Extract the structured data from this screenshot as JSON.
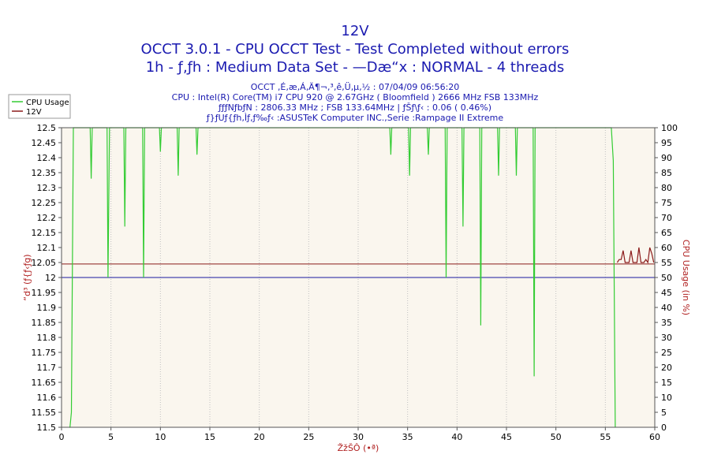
{
  "chart_data": {
    "type": "line",
    "title_lines": [
      "12V",
      "OCCT 3.0.1 - CPU OCCT Test - Test Completed without errors",
      "1h - ƒ‚ƒh : Medium Data Set - —Dæ“x : NORMAL - 4 threads"
    ],
    "info_lines": [
      "OCCT ‚É‚æ‚Á‚Ä¶¬‚³‚ê‚Ü‚µ‚½ : 07/04/09 06:56:20",
      "CPU : Intel(R) Core(TM) i7 CPU 920 @ 2.67GHz ( Bloomfield ) 2666 MHz FSB 133MHz",
      "ƒƒƒNƒbƒN : 2806.33 MHz ; FSB 133.64MHz | ƒŠƒ\\ƒ‹ : 0.06 ( 0.46%)",
      "ƒ}ƒUƒ{ƒh‚Ìƒ‚ƒ‰ƒ‹ :ASUSTeK Computer INC.,Serie :Rampage II Extreme"
    ],
    "xlabel": "ŽžŠÔ (•ª)",
    "ylabel_left": "“d³ (ƒ{ƒ‹ƒg)",
    "ylabel_right": "CPU Usage (in %)",
    "xlim": [
      0,
      60
    ],
    "ylim_left": [
      11.5,
      12.5
    ],
    "ylim_right": [
      0,
      100
    ],
    "x_ticks": [
      0,
      5,
      10,
      15,
      20,
      25,
      30,
      35,
      40,
      45,
      50,
      55,
      60
    ],
    "y_ticks_left": [
      "11.5",
      "11.55",
      "11.6",
      "11.65",
      "11.7",
      "11.75",
      "11.8",
      "11.85",
      "11.9",
      "11.95",
      "12",
      "12.05",
      "12.1",
      "12.15",
      "12.2",
      "12.25",
      "12.3",
      "12.35",
      "12.4",
      "12.45",
      "12.5"
    ],
    "y_ticks_right": [
      0,
      5,
      10,
      15,
      20,
      25,
      30,
      35,
      40,
      45,
      50,
      55,
      60,
      65,
      70,
      75,
      80,
      85,
      90,
      95,
      100
    ],
    "grid": "vertical",
    "legend_position": "top-left",
    "series": [
      {
        "name": "CPU Usage",
        "color": "#33cc33",
        "axis": "right",
        "points": [
          [
            0.8,
            0
          ],
          [
            0.85,
            0
          ],
          [
            1.0,
            5
          ],
          [
            1.2,
            100
          ],
          [
            2.9,
            100
          ],
          [
            3.0,
            83
          ],
          [
            3.1,
            100
          ],
          [
            4.6,
            100
          ],
          [
            4.7,
            50
          ],
          [
            4.85,
            100
          ],
          [
            6.3,
            100
          ],
          [
            6.4,
            67
          ],
          [
            6.5,
            100
          ],
          [
            8.2,
            100
          ],
          [
            8.3,
            50
          ],
          [
            8.4,
            100
          ],
          [
            9.9,
            100
          ],
          [
            10.0,
            92
          ],
          [
            10.1,
            100
          ],
          [
            11.7,
            100
          ],
          [
            11.8,
            84
          ],
          [
            11.9,
            100
          ],
          [
            13.6,
            100
          ],
          [
            13.7,
            91
          ],
          [
            13.8,
            100
          ],
          [
            33.2,
            100
          ],
          [
            33.3,
            91
          ],
          [
            33.4,
            100
          ],
          [
            35.1,
            100
          ],
          [
            35.2,
            84
          ],
          [
            35.3,
            100
          ],
          [
            37.0,
            100
          ],
          [
            37.1,
            91
          ],
          [
            37.2,
            100
          ],
          [
            38.8,
            100
          ],
          [
            38.9,
            50
          ],
          [
            39.0,
            100
          ],
          [
            40.5,
            100
          ],
          [
            40.6,
            67
          ],
          [
            40.7,
            100
          ],
          [
            42.3,
            100
          ],
          [
            42.4,
            34
          ],
          [
            42.5,
            100
          ],
          [
            44.1,
            100
          ],
          [
            44.2,
            84
          ],
          [
            44.3,
            100
          ],
          [
            45.9,
            100
          ],
          [
            46.0,
            84
          ],
          [
            46.1,
            100
          ],
          [
            47.7,
            100
          ],
          [
            47.8,
            17
          ],
          [
            47.9,
            100
          ],
          [
            55.6,
            100
          ],
          [
            55.8,
            89
          ],
          [
            56.0,
            0
          ]
        ]
      },
      {
        "name": "12V",
        "color": "#8b1a1a",
        "axis": "left",
        "points": [
          [
            56.2,
            12.05
          ],
          [
            56.4,
            12.06
          ],
          [
            56.6,
            12.06
          ],
          [
            56.8,
            12.09
          ],
          [
            57.0,
            12.05
          ],
          [
            57.4,
            12.05
          ],
          [
            57.6,
            12.09
          ],
          [
            57.8,
            12.05
          ],
          [
            58.2,
            12.05
          ],
          [
            58.4,
            12.1
          ],
          [
            58.6,
            12.05
          ],
          [
            58.9,
            12.05
          ],
          [
            59.1,
            12.06
          ],
          [
            59.3,
            12.05
          ],
          [
            59.5,
            12.1
          ],
          [
            59.7,
            12.08
          ],
          [
            59.9,
            12.05
          ]
        ]
      }
    ],
    "reference_lines": [
      {
        "axis": "left",
        "value": 12.0,
        "color": "#1a1aa0"
      },
      {
        "axis": "left",
        "value": 12.045,
        "color": "#8b1a1a"
      }
    ]
  },
  "colors": {
    "plot_bg": "#faf6ee",
    "grid": "#c0c0c0",
    "title": "#1a1ab0",
    "axis_label": "#b02020"
  }
}
